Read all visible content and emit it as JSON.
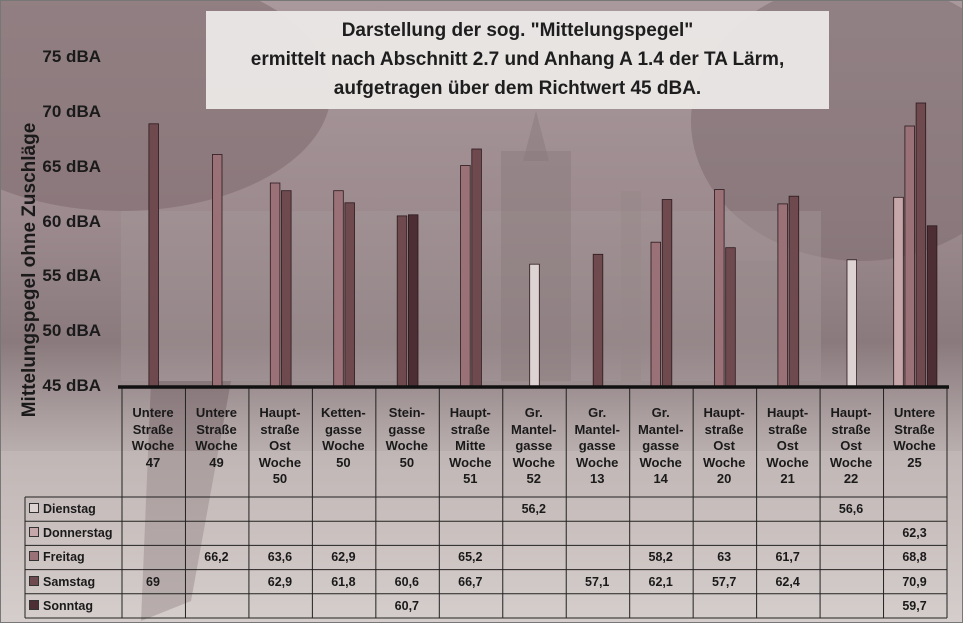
{
  "chart_data": {
    "type": "bar",
    "title_lines": [
      "Darstellung der sog. \"Mittelungspegel\"",
      "ermittelt nach Abschnitt 2.7 und Anhang A 1.4 der TA Lärm,",
      "aufgetragen über dem Richtwert 45 dBA."
    ],
    "ylabel": "Mittelungspegel ohne Zuschläge",
    "ylim": [
      45,
      75
    ],
    "yticks": [
      "45 dBA",
      "50 dBA",
      "55 dBA",
      "60 dBA",
      "65 dBA",
      "70 dBA",
      "75 dBA"
    ],
    "ytick_values": [
      45,
      50,
      55,
      60,
      65,
      70,
      75
    ],
    "categories": [
      "Untere Straße Woche 47",
      "Untere Straße Woche 49",
      "Haupt- straße Ost Woche 50",
      "Ketten- gasse Woche 50",
      "Stein- gasse Woche 50",
      "Haupt- straße Mitte Woche 51",
      "Gr. Mantel- gasse Woche 52",
      "Gr. Mantel- gasse Woche 13",
      "Gr. Mantel- gasse Woche 14",
      "Haupt- straße Ost Woche 20",
      "Haupt- straße Ost Woche 21",
      "Haupt- straße Ost Woche 22",
      "Untere Straße Woche 25"
    ],
    "category_lines": [
      [
        "Untere",
        "Straße",
        "Woche",
        "47"
      ],
      [
        "Untere",
        "Straße",
        "Woche",
        "49"
      ],
      [
        "Haupt-",
        "straße",
        "Ost",
        "Woche",
        "50"
      ],
      [
        "Ketten-",
        "gasse",
        "Woche",
        "50"
      ],
      [
        "Stein-",
        "gasse",
        "Woche",
        "50"
      ],
      [
        "Haupt-",
        "straße",
        "Mitte",
        "Woche",
        "51"
      ],
      [
        "Gr.",
        "Mantel-",
        "gasse",
        "Woche",
        "52"
      ],
      [
        "Gr.",
        "Mantel-",
        "gasse",
        "Woche",
        "13"
      ],
      [
        "Gr.",
        "Mantel-",
        "gasse",
        "Woche",
        "14"
      ],
      [
        "Haupt-",
        "straße",
        "Ost",
        "Woche",
        "20"
      ],
      [
        "Haupt-",
        "straße",
        "Ost",
        "Woche",
        "21"
      ],
      [
        "Haupt-",
        "straße",
        "Ost",
        "Woche",
        "22"
      ],
      [
        "Untere",
        "Straße",
        "Woche",
        "25"
      ]
    ],
    "series": [
      {
        "name": "Dienstag",
        "color": "#ddd3d3",
        "values": [
          null,
          null,
          null,
          null,
          null,
          null,
          56.2,
          null,
          null,
          null,
          null,
          56.6,
          null
        ],
        "labels": [
          "",
          "",
          "",
          "",
          "",
          "",
          "56,2",
          "",
          "",
          "",
          "",
          "56,6",
          ""
        ]
      },
      {
        "name": "Donnerstag",
        "color": "#c5a7a9",
        "values": [
          null,
          null,
          null,
          null,
          null,
          null,
          null,
          null,
          null,
          null,
          null,
          null,
          62.3
        ],
        "labels": [
          "",
          "",
          "",
          "",
          "",
          "",
          "",
          "",
          "",
          "",
          "",
          "",
          "62,3"
        ]
      },
      {
        "name": "Freitag",
        "color": "#9a7176",
        "values": [
          null,
          66.2,
          63.6,
          62.9,
          null,
          65.2,
          null,
          null,
          58.2,
          63,
          61.7,
          null,
          68.8
        ],
        "labels": [
          "",
          "66,2",
          "63,6",
          "62,9",
          "",
          "65,2",
          "",
          "",
          "58,2",
          "63",
          "61,7",
          "",
          "68,8"
        ]
      },
      {
        "name": "Samstag",
        "color": "#6e4a4f",
        "values": [
          69,
          null,
          62.9,
          61.8,
          60.6,
          66.7,
          null,
          57.1,
          62.1,
          57.7,
          62.4,
          null,
          70.9
        ],
        "labels": [
          "69",
          "",
          "62,9",
          "61,8",
          "60,6",
          "66,7",
          "",
          "57,1",
          "62,1",
          "57,7",
          "62,4",
          "",
          "70,9"
        ]
      },
      {
        "name": "Sonntag",
        "color": "#4d2e34",
        "values": [
          null,
          null,
          null,
          null,
          60.7,
          null,
          null,
          null,
          null,
          null,
          null,
          null,
          59.7
        ],
        "labels": [
          "",
          "",
          "",
          "",
          "60,7",
          "",
          "",
          "",
          "",
          "",
          "",
          "",
          "59,7"
        ]
      }
    ],
    "legend": "data table below chart",
    "grid": false
  }
}
